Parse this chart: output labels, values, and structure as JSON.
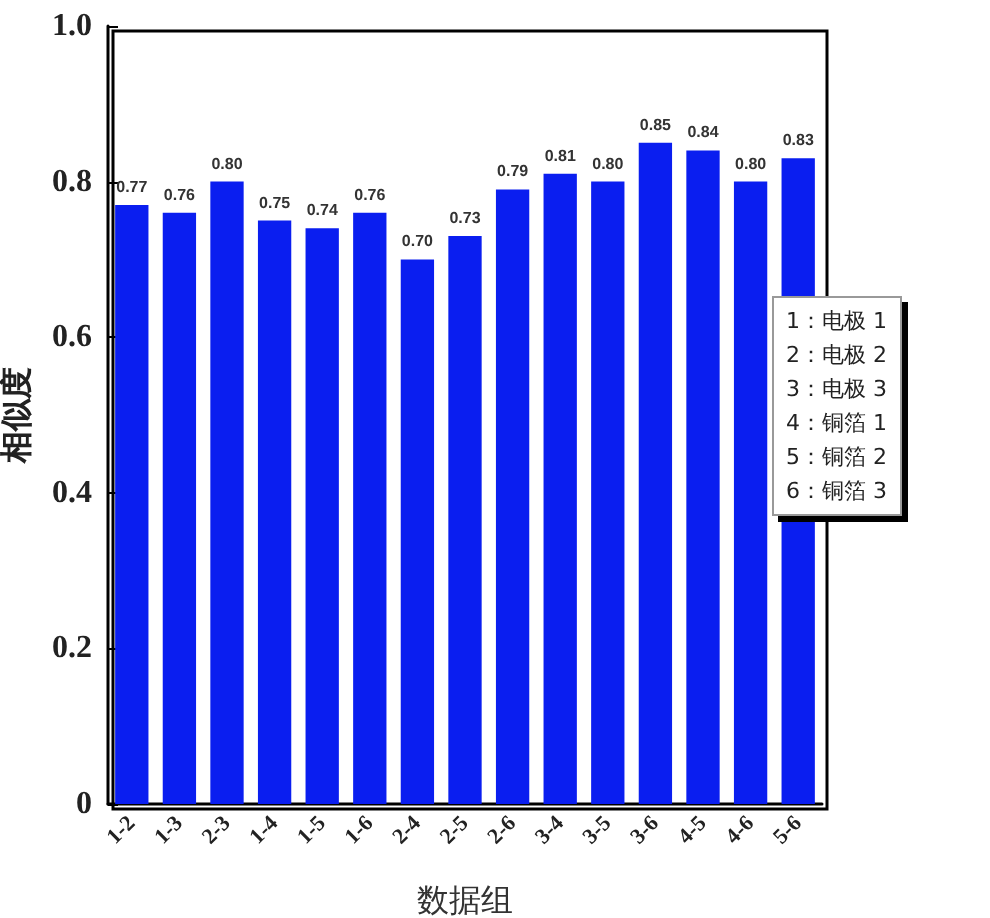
{
  "chart_data": {
    "type": "bar",
    "xlabel": "数据组",
    "ylabel": "相似度",
    "categories": [
      "1-2",
      "1-3",
      "2-3",
      "1-4",
      "1-5",
      "1-6",
      "2-4",
      "2-5",
      "2-6",
      "3-4",
      "3-5",
      "3-6",
      "4-5",
      "4-6",
      "5-6"
    ],
    "values": [
      0.77,
      0.76,
      0.8,
      0.75,
      0.74,
      0.76,
      0.7,
      0.73,
      0.79,
      0.81,
      0.8,
      0.85,
      0.84,
      0.8,
      0.83
    ],
    "color": "#0a1ef0",
    "value_labels": [
      "0.77",
      "0.76",
      "0.80",
      "0.75",
      "0.74",
      "0.76",
      "0.70",
      "0.73",
      "0.79",
      "0.81",
      "0.80",
      "0.85",
      "0.84",
      "0.80",
      "0.83"
    ],
    "ylim": [
      0,
      1.0
    ],
    "yticks": [
      0,
      0.2,
      0.4,
      0.6,
      0.8,
      {
        "value": 1.0,
        "label": "1.0"
      }
    ],
    "annotations": [
      "1：电极 1",
      "2：电极 2",
      "3：电极 3",
      "4：铜箔 1",
      "5：铜箔 2",
      "6：铜箔 3"
    ],
    "grid": false
  }
}
